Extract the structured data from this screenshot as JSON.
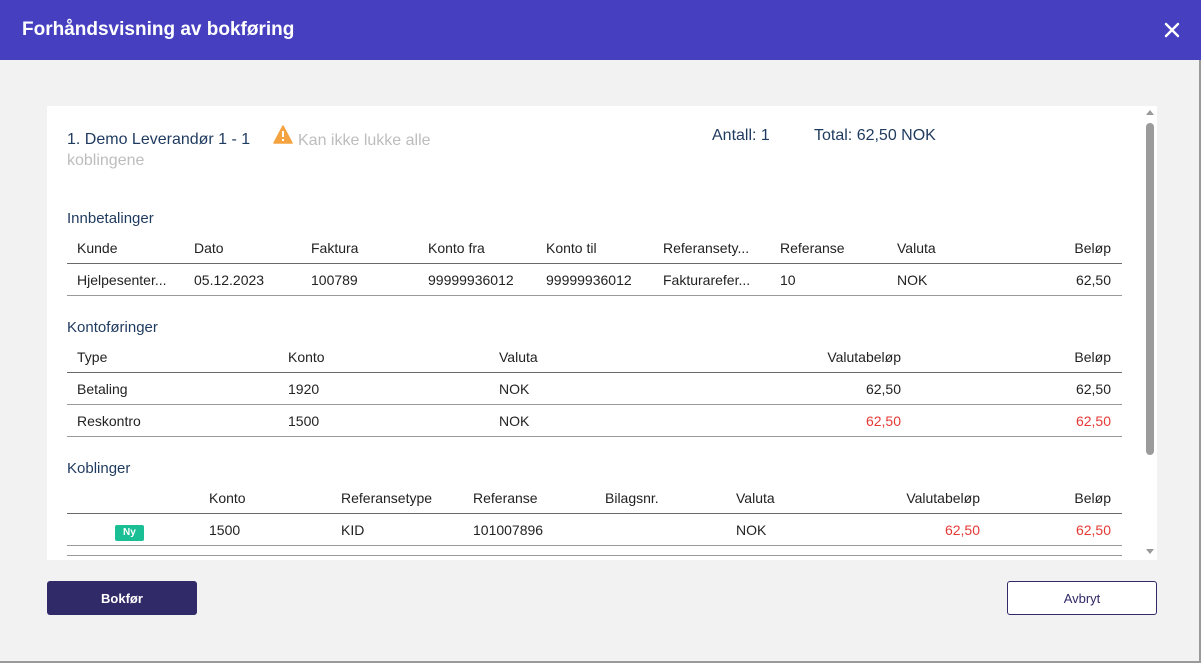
{
  "dialog": {
    "title": "Forhåndsvisning av bokføring",
    "close_icon": "close-icon"
  },
  "entry": {
    "title": "1. Demo Leverandør 1 - 1",
    "warning_icon": "warning-triangle-icon",
    "warning_color": "#f4a340",
    "warning_text": "Kan ikke lukke alle koblingene",
    "count": "Antall: 1",
    "total": "Total: 62,50 NOK"
  },
  "innbetalinger": {
    "title": "Innbetalinger",
    "columns": [
      "Kunde",
      "Dato",
      "Faktura",
      "Konto fra",
      "Konto til",
      "Referansety...",
      "Referanse",
      "Valuta",
      "Beløp"
    ],
    "rows": [
      [
        "Hjelpesenter...",
        "05.12.2023",
        "100789",
        "99999936012",
        "99999936012",
        "Fakturarefer...",
        "10",
        "NOK",
        "62,50"
      ]
    ]
  },
  "kontoforinger": {
    "title": "Kontoføringer",
    "columns": [
      "Type",
      "Konto",
      "Valuta",
      "Valutabeløp",
      "Beløp"
    ],
    "rows": [
      [
        "Betaling",
        "1920",
        "NOK",
        "62,50",
        "62,50"
      ],
      [
        "Reskontro",
        "1500",
        "NOK",
        "62,50",
        "62,50"
      ]
    ]
  },
  "koblinger": {
    "title": "Koblinger",
    "columns": [
      "",
      "Konto",
      "Referansetype",
      "Referanse",
      "Bilagsnr.",
      "Valuta",
      "Valutabeløp",
      "Beløp"
    ],
    "rows": [
      [
        "Ny",
        "1500",
        "KID",
        "101007896",
        "",
        "NOK",
        "62,50",
        "62,50"
      ]
    ],
    "badge_color": "#1bbf95"
  },
  "colors": {
    "header": "#4640c0",
    "negative": "#e53935",
    "primary_button": "#312a68"
  },
  "actions": {
    "post": "Bokfør",
    "cancel": "Avbryt"
  }
}
